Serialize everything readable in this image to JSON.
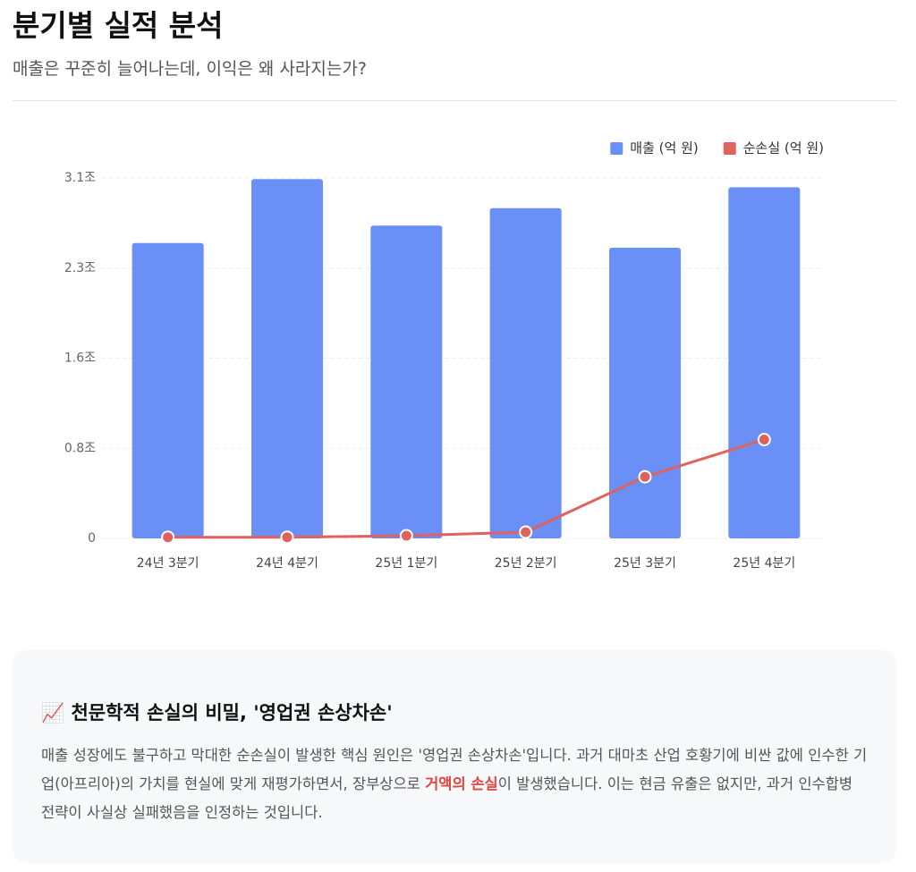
{
  "header": {
    "title": "분기별 실적 분석",
    "subtitle": "매출은 꾸준히 늘어나는데, 이익은 왜 사라지는가?"
  },
  "chart_data": {
    "type": "bar",
    "categories": [
      "24년 3분기",
      "24년 4분기",
      "25년 1분기",
      "25년 2분기",
      "25년 3분기",
      "25년 4분기"
    ],
    "series": [
      {
        "name": "매출 (억 원)",
        "type": "bar",
        "color": "#6a8ff7",
        "values": [
          25400,
          30900,
          26900,
          28400,
          25000,
          30200
        ]
      },
      {
        "name": "순손실 (억 원)",
        "type": "line",
        "color": "#e0625c",
        "values": [
          100,
          100,
          230,
          540,
          5300,
          8500
        ]
      }
    ],
    "ylim": [
      0,
      31000
    ],
    "yticks": [
      0,
      {
        "value": 7750,
        "label": "0.8조"
      },
      {
        "value": 15500,
        "label": "1.6조"
      },
      {
        "value": 23250,
        "label": "2.3조"
      },
      {
        "value": 31000,
        "label": "3.1조"
      }
    ],
    "grid": true,
    "legend": "top-right"
  },
  "card": {
    "heading": "📈 천문학적 손실의 비밀, '영업권 손상차손'",
    "body": [
      "매출 성장에도 불구하고 막대한 순손실이 발생한 핵심 원인은 '영업권 손상차손'입니다. 과거 대마초 산업 호황기에 비싼 값에 인수한 기업(아프리아)의 가치를 현실에 맞게 재평가하면서, 장부상으로 ",
      "거액의 손실",
      "이 발생했습니다. 이는 현금 유출은 없지만, 과거 인수합병 전략이 사실상 실패했음을 인정하는 것입니다."
    ]
  }
}
